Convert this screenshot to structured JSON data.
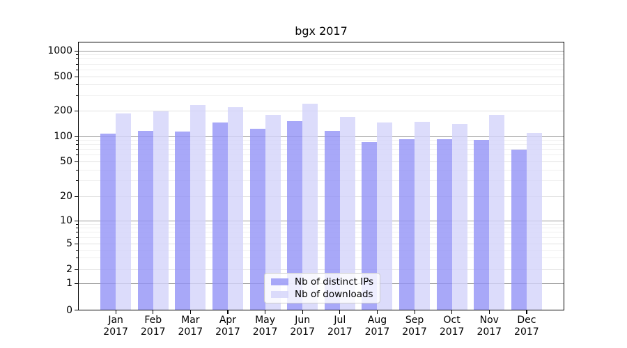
{
  "chart_data": {
    "type": "bar",
    "title": "bgx 2017",
    "yscale": "symlog",
    "ylim": [
      0,
      1000
    ],
    "yticks": [
      0,
      1,
      2,
      5,
      10,
      20,
      50,
      100,
      200,
      500,
      1000
    ],
    "grid": true,
    "legend_position": "lower center",
    "categories": [
      "Jan",
      "Feb",
      "Mar",
      "Apr",
      "May",
      "Jun",
      "Jul",
      "Aug",
      "Sep",
      "Oct",
      "Nov",
      "Dec"
    ],
    "year_label": "2017",
    "series": [
      {
        "name": "Nb of distinct IPs",
        "color": "#9292f6",
        "values": [
          108,
          117,
          114,
          145,
          123,
          152,
          117,
          85,
          93,
          93,
          90,
          70
        ]
      },
      {
        "name": "Nb of downloads",
        "color": "#d3d3fa",
        "values": [
          186,
          197,
          233,
          218,
          180,
          240,
          168,
          146,
          147,
          139,
          180,
          109
        ]
      }
    ],
    "colors": {
      "background": "#ffffff",
      "axis": "#000000",
      "decade_gridline": "#999999",
      "major_gridline": "#e1e1e1",
      "minor_gridline": "#efefef"
    }
  }
}
